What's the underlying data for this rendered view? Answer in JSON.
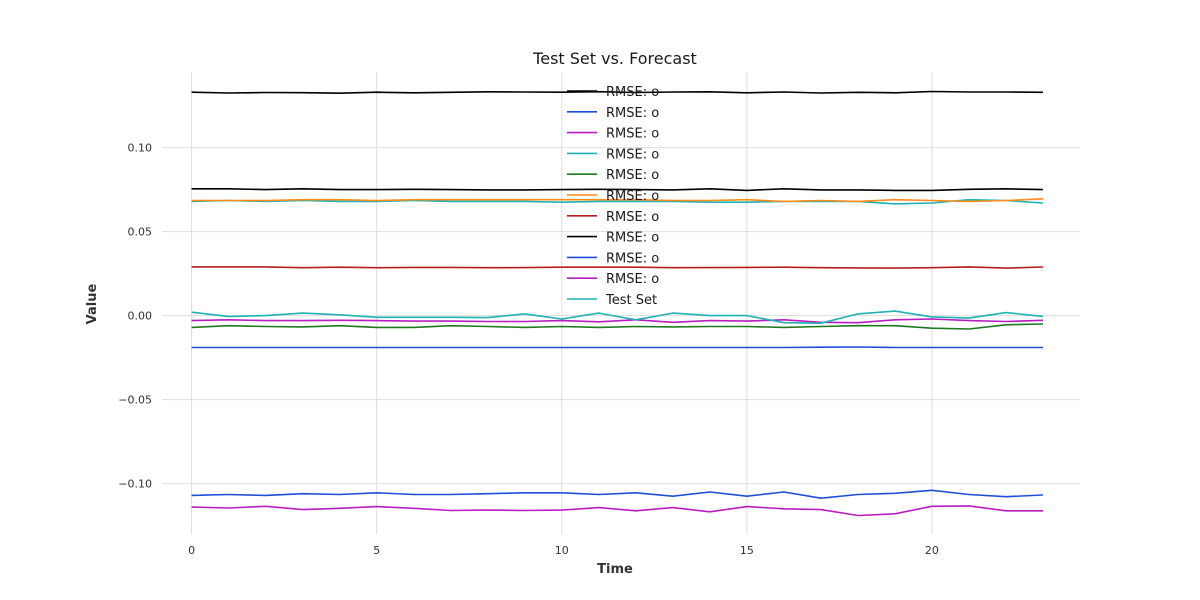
{
  "chart_data": {
    "type": "line",
    "title": "Test Set vs. Forecast",
    "xlabel": "Time",
    "ylabel": "Value",
    "xlim": [
      -0.8,
      24
    ],
    "ylim": [
      -0.13,
      0.145
    ],
    "xticks": [
      0,
      5,
      10,
      15,
      20
    ],
    "xtick_labels": [
      "0",
      "5",
      "10",
      "15",
      "20"
    ],
    "yticks": [
      -0.1,
      -0.05,
      0.0,
      0.05,
      0.1
    ],
    "ytick_labels": [
      "−0.10",
      "−0.05",
      "0.00",
      "0.05",
      "0.10"
    ],
    "grid": true,
    "legend_position": "top-center",
    "x": [
      0,
      1,
      2,
      3,
      4,
      5,
      6,
      7,
      8,
      9,
      10,
      11,
      12,
      13,
      14,
      15,
      16,
      17,
      18,
      19,
      20,
      21,
      22,
      23
    ],
    "series": [
      {
        "name": "RMSE: o",
        "color": "#000000",
        "values": [
          0.133,
          0.1325,
          0.1328,
          0.1327,
          0.1324,
          0.133,
          0.1326,
          0.1329,
          0.1332,
          0.1331,
          0.133,
          0.1333,
          0.1328,
          0.1331,
          0.1332,
          0.1326,
          0.1331,
          0.1325,
          0.1329,
          0.1326,
          0.1334,
          0.1331,
          0.1331,
          0.1329
        ]
      },
      {
        "name": "RMSE: o",
        "color": "#1f4fd6",
        "values": [
          -0.019,
          -0.019,
          -0.019,
          -0.019,
          -0.019,
          -0.019,
          -0.019,
          -0.019,
          -0.019,
          -0.019,
          -0.019,
          -0.019,
          -0.019,
          -0.019,
          -0.019,
          -0.019,
          -0.019,
          -0.0188,
          -0.0187,
          -0.019,
          -0.019,
          -0.019,
          -0.019,
          -0.019
        ]
      },
      {
        "name": "RMSE: o",
        "color": "#b81ec0",
        "values": [
          -0.114,
          -0.1145,
          -0.1135,
          -0.1155,
          -0.1147,
          -0.1137,
          -0.1147,
          -0.116,
          -0.1158,
          -0.116,
          -0.1158,
          -0.1143,
          -0.1162,
          -0.1143,
          -0.1168,
          -0.1137,
          -0.115,
          -0.1155,
          -0.119,
          -0.118,
          -0.1135,
          -0.1133,
          -0.1162,
          -0.1162
        ]
      },
      {
        "name": "RMSE: o",
        "color": "#20b2b2",
        "values": [
          0.068,
          0.0685,
          0.068,
          0.0685,
          0.068,
          0.068,
          0.0685,
          0.068,
          0.068,
          0.068,
          0.0675,
          0.068,
          0.068,
          0.068,
          0.0675,
          0.0675,
          0.068,
          0.068,
          0.068,
          0.0665,
          0.067,
          0.069,
          0.0685,
          0.067
        ]
      },
      {
        "name": "RMSE: o",
        "color": "#1f7a1f",
        "values": [
          -0.007,
          -0.006,
          -0.0065,
          -0.0067,
          -0.006,
          -0.007,
          -0.007,
          -0.006,
          -0.0065,
          -0.007,
          -0.0065,
          -0.007,
          -0.0065,
          -0.0067,
          -0.0065,
          -0.0065,
          -0.007,
          -0.0065,
          -0.006,
          -0.006,
          -0.0075,
          -0.008,
          -0.0055,
          -0.005
        ]
      },
      {
        "name": "RMSE: o",
        "color": "#ff8c1a",
        "values": [
          0.0685,
          0.0685,
          0.0685,
          0.069,
          0.069,
          0.0685,
          0.069,
          0.069,
          0.069,
          0.069,
          0.069,
          0.069,
          0.069,
          0.0685,
          0.0685,
          0.069,
          0.068,
          0.0685,
          0.068,
          0.069,
          0.0685,
          0.068,
          0.0685,
          0.0695
        ]
      },
      {
        "name": "RMSE: o",
        "color": "#b51f1f",
        "values": [
          0.029,
          0.029,
          0.029,
          0.0285,
          0.0288,
          0.0285,
          0.0287,
          0.0287,
          0.0285,
          0.0286,
          0.0288,
          0.0288,
          0.0288,
          0.0285,
          0.0286,
          0.0287,
          0.0288,
          0.0285,
          0.0284,
          0.0283,
          0.0285,
          0.029,
          0.0283,
          0.0289
        ]
      },
      {
        "name": "RMSE: o",
        "color": "#000000",
        "values": [
          0.0755,
          0.0755,
          0.075,
          0.0755,
          0.075,
          0.075,
          0.0752,
          0.075,
          0.0748,
          0.0748,
          0.075,
          0.0752,
          0.075,
          0.0748,
          0.0755,
          0.0745,
          0.0755,
          0.0748,
          0.0748,
          0.0745,
          0.0745,
          0.0752,
          0.0755,
          0.075
        ]
      },
      {
        "name": "RMSE: o",
        "color": "#1f4fd6",
        "values": [
          -0.107,
          -0.1065,
          -0.107,
          -0.106,
          -0.1065,
          -0.1055,
          -0.1065,
          -0.1065,
          -0.106,
          -0.1055,
          -0.1055,
          -0.1065,
          -0.1055,
          -0.1075,
          -0.105,
          -0.1075,
          -0.105,
          -0.1087,
          -0.1065,
          -0.1058,
          -0.104,
          -0.1065,
          -0.1078,
          -0.1068
        ]
      },
      {
        "name": "RMSE: o",
        "color": "#b81ec0",
        "values": [
          -0.003,
          -0.0025,
          -0.003,
          -0.003,
          -0.0028,
          -0.003,
          -0.0033,
          -0.0033,
          -0.0035,
          -0.0035,
          -0.003,
          -0.0037,
          -0.0025,
          -0.004,
          -0.003,
          -0.0033,
          -0.0025,
          -0.004,
          -0.0042,
          -0.0025,
          -0.002,
          -0.003,
          -0.0035,
          -0.0028
        ]
      },
      {
        "name": "Test Set",
        "color": "#20b2b2",
        "values": [
          0.002,
          -0.0005,
          0.0,
          0.0015,
          0.0005,
          -0.001,
          -0.001,
          -0.001,
          -0.0012,
          0.001,
          -0.002,
          0.0015,
          -0.0025,
          0.0015,
          0.0,
          0.0,
          -0.0042,
          -0.0045,
          0.001,
          0.0027,
          -0.0008,
          -0.0015,
          0.0018,
          -0.0005
        ]
      }
    ]
  }
}
